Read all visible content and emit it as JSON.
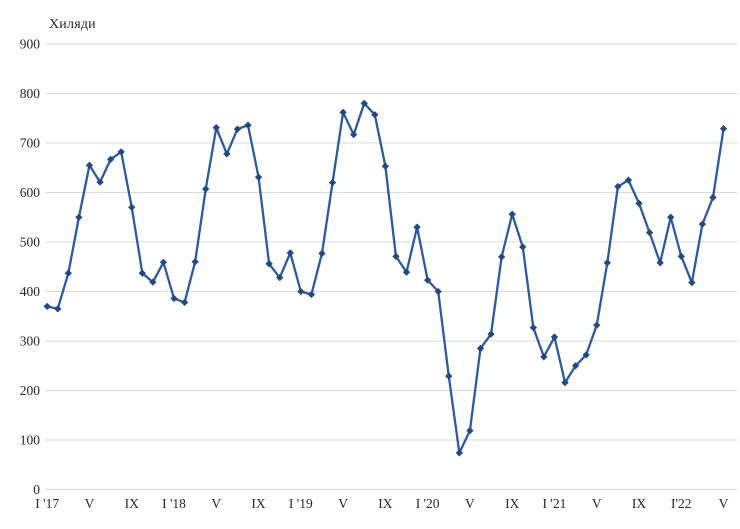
{
  "chart": {
    "unit_label": "Хиляди"
  },
  "chart_data": {
    "type": "line",
    "title": "Хиляди",
    "subtitle": "",
    "xlabel": "",
    "ylabel": "Хиляди",
    "ylim": [
      0,
      900
    ],
    "ytick_step": 100,
    "ytick_labels": [
      "0",
      "100",
      "200",
      "300",
      "400",
      "500",
      "600",
      "700",
      "800",
      "900"
    ],
    "grid": true,
    "legend_position": "none",
    "x_tick_labels": [
      "I '17",
      "V",
      "IX",
      "I '18",
      "V",
      "IX",
      "I '19",
      "V",
      "IX",
      "I '20",
      "V",
      "IX",
      "I '21",
      "V",
      "IX",
      "I'22",
      "V"
    ],
    "x_tick_every": 4,
    "x_start": "I '17",
    "x_end": "V '22",
    "values": [
      370,
      365,
      437,
      550,
      655,
      621,
      667,
      682,
      570,
      437,
      419,
      459,
      386,
      378,
      460,
      607,
      731,
      678,
      728,
      736,
      631,
      456,
      428,
      478,
      400,
      394,
      477,
      620,
      762,
      717,
      780,
      757,
      653,
      471,
      439,
      530,
      423,
      400,
      229,
      74,
      119,
      285,
      314,
      470,
      556,
      490,
      327,
      268,
      308,
      216,
      250,
      272,
      332,
      458,
      612,
      625,
      578,
      519,
      458,
      550,
      471,
      418,
      536,
      590,
      729
    ],
    "colors": {
      "line": "#2e5a9c",
      "marker": "#25497f",
      "gridline": "#d9d9d9",
      "text": "#262626",
      "background": "#ffffff"
    }
  }
}
